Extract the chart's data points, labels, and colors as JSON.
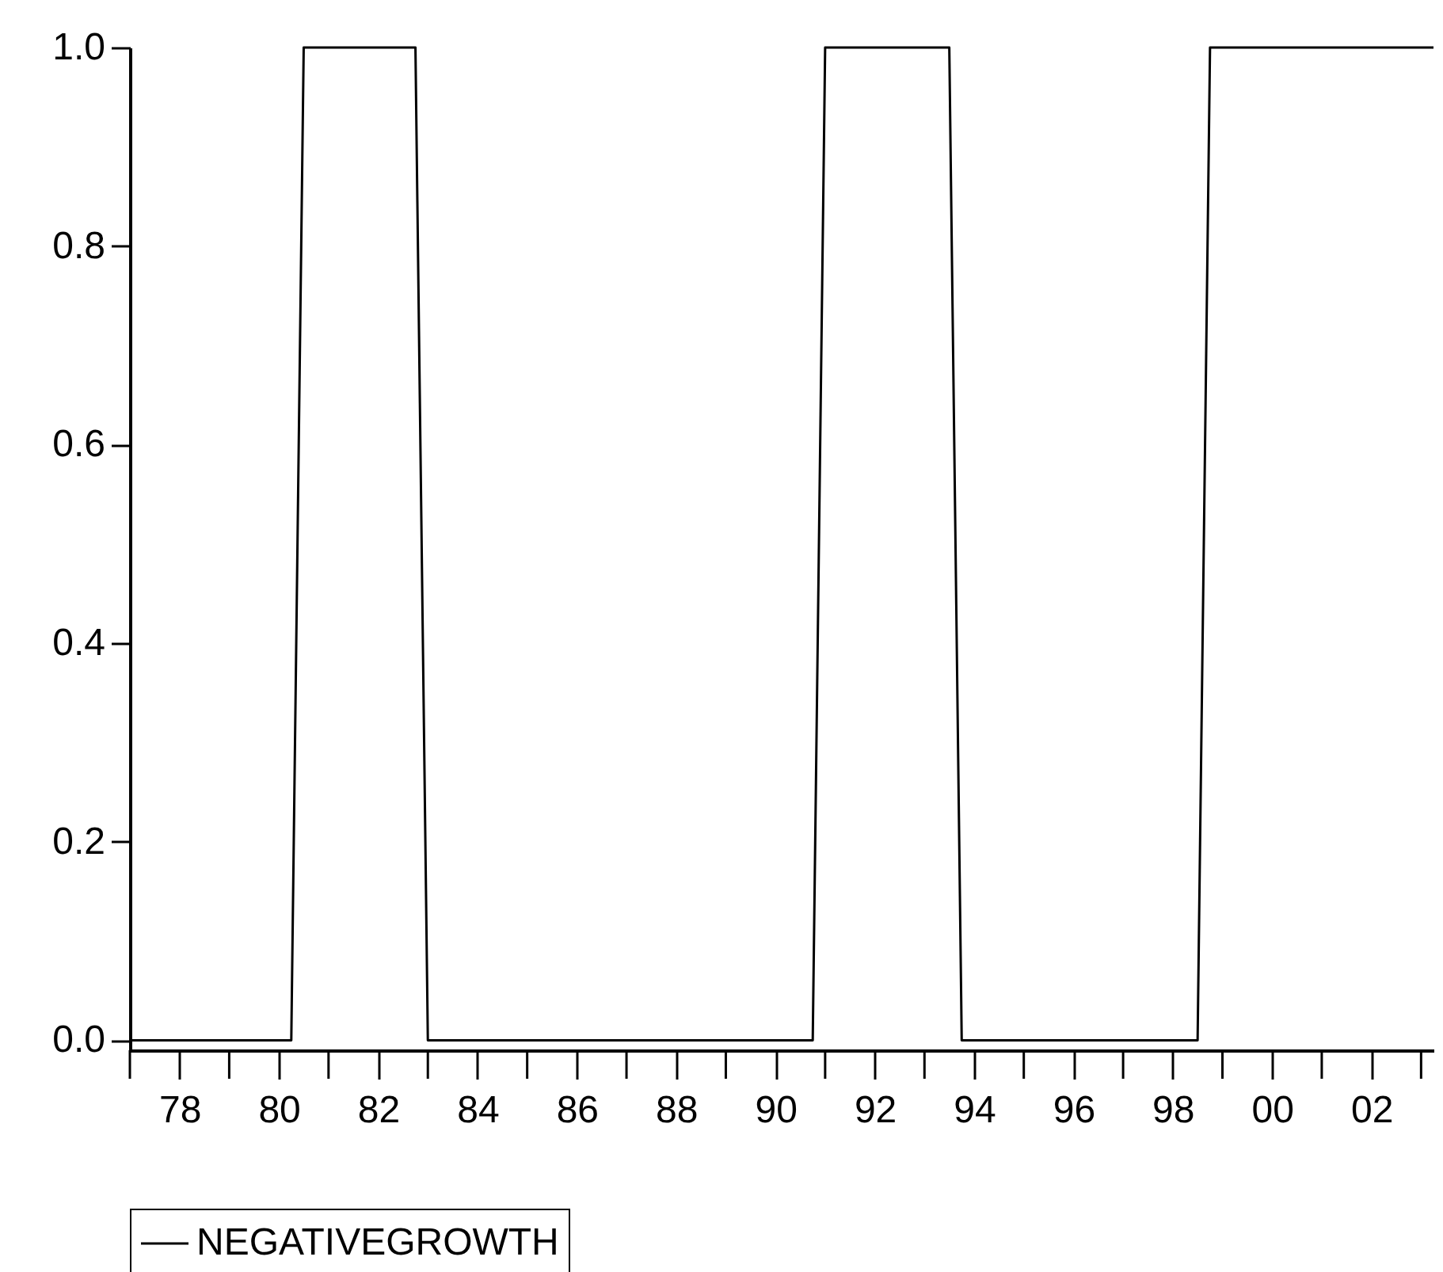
{
  "chart_data": {
    "type": "line",
    "x": [
      1977,
      1980.25,
      1980.5,
      1982.75,
      1983,
      1990.75,
      1991,
      1993.5,
      1993.75,
      1998.5,
      1998.75,
      2003.25
    ],
    "series": [
      {
        "name": "NEGATIVEGROWTH",
        "color": "#000000",
        "values": [
          0,
          0,
          1,
          1,
          0,
          0,
          1,
          1,
          0,
          0,
          1,
          1
        ]
      }
    ],
    "xlim": [
      1977,
      2003.25
    ],
    "xticks": [
      {
        "value": 1978,
        "label": "78"
      },
      {
        "value": 1980,
        "label": "80"
      },
      {
        "value": 1982,
        "label": "82"
      },
      {
        "value": 1984,
        "label": "84"
      },
      {
        "value": 1986,
        "label": "86"
      },
      {
        "value": 1988,
        "label": "88"
      },
      {
        "value": 1990,
        "label": "90"
      },
      {
        "value": 1992,
        "label": "92"
      },
      {
        "value": 1994,
        "label": "94"
      },
      {
        "value": 1996,
        "label": "96"
      },
      {
        "value": 1998,
        "label": "98"
      },
      {
        "value": 2000,
        "label": "00"
      },
      {
        "value": 2002,
        "label": "02"
      }
    ],
    "ylim": [
      -0.01,
      1.0
    ],
    "yticks": [
      {
        "value": 0,
        "label": "0.0"
      },
      {
        "value": 0.2,
        "label": "0.2"
      },
      {
        "value": 0.4,
        "label": "0.4"
      },
      {
        "value": 0.6,
        "label": "0.6"
      },
      {
        "value": 0.8,
        "label": "0.8"
      },
      {
        "value": 1.0,
        "label": "1.0"
      }
    ],
    "grid": false,
    "legend": "bottom",
    "line_style": "solid",
    "marker": "none"
  }
}
